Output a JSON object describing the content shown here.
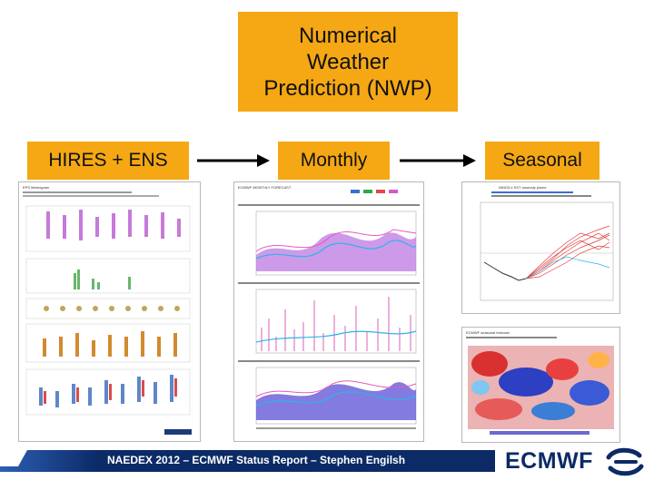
{
  "title": "Numerical\nWeather\nPrediction (NWP)",
  "stages": [
    {
      "label": "HIRES + ENS"
    },
    {
      "label": "Monthly"
    },
    {
      "label": "Seasonal"
    }
  ],
  "footer": {
    "text": "NAEDEX 2012 – ECMWF Status Report – Stephen Engilsh",
    "logo_text": "ECMWF"
  },
  "thumbnails": {
    "hires_ens": "EPS Meteogram",
    "monthly": "ECMWF MONTHLY FORECAST",
    "seasonal_plume": "NINO3.4 SST anomaly plume",
    "seasonal_map": "ECMWF seasonal forecast"
  },
  "colors": {
    "accent": "#f5a814",
    "navy": "#0b2a66"
  }
}
